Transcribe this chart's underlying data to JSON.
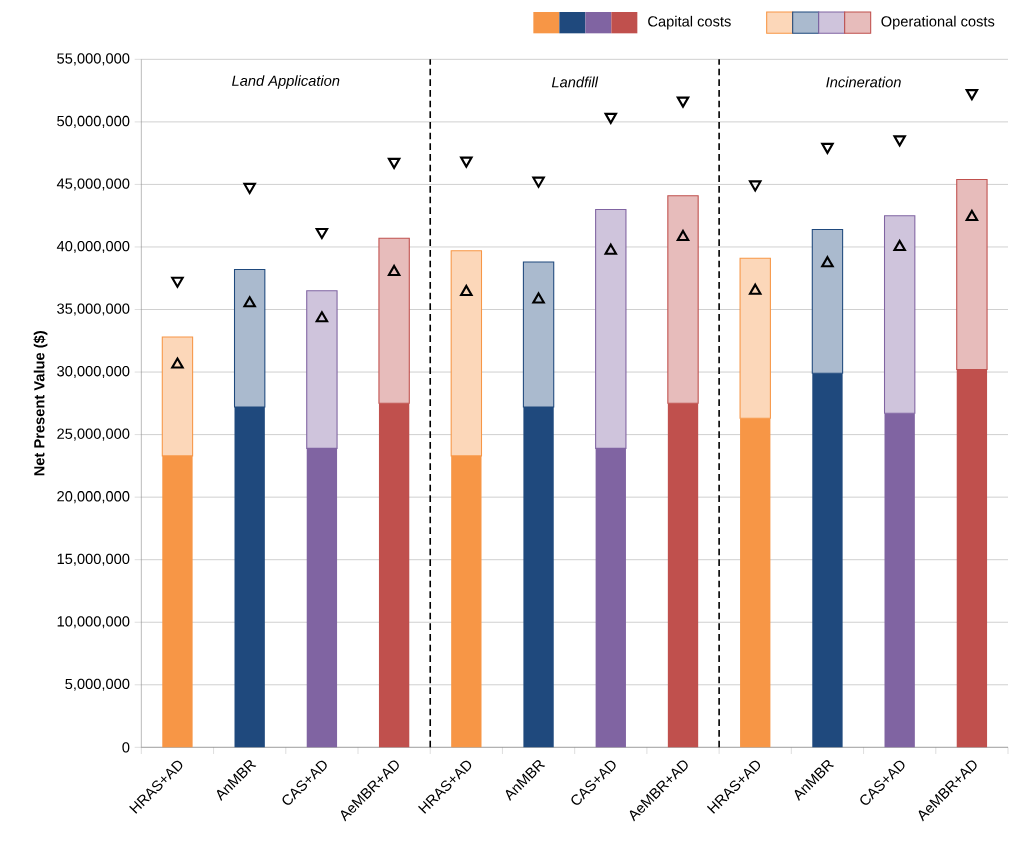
{
  "chart_data": {
    "type": "bar",
    "ylabel": "Net Present Value ($)",
    "stacked": true,
    "legend": "top",
    "grid": "y",
    "categories": [
      "HRAS+AD",
      "AnMBR",
      "CAS+AD",
      "AeMBR+AD",
      "HRAS+AD",
      "AnMBR",
      "CAS+AD",
      "AeMBR+AD",
      "HRAS+AD",
      "AnMBR",
      "CAS+AD",
      "AeMBR+AD"
    ],
    "series": [
      {
        "name": "Capital costs",
        "colors": [
          "#f79646",
          "#1f497d",
          "#8064a2",
          "#c0504d",
          "#f79646",
          "#1f497d",
          "#8064a2",
          "#c0504d",
          "#f79646",
          "#1f497d",
          "#8064a2",
          "#c0504d"
        ],
        "values": [
          23300000,
          27200000,
          23900000,
          27500000,
          23300000,
          27200000,
          23900000,
          27500000,
          26300000,
          29900000,
          26700000,
          30200000
        ]
      },
      {
        "name": "Operational costs",
        "colors": [
          "#f79646",
          "#1f497d",
          "#8064a2",
          "#c0504d",
          "#f79646",
          "#1f497d",
          "#8064a2",
          "#c0504d",
          "#f79646",
          "#1f497d",
          "#8064a2",
          "#c0504d"
        ],
        "values": [
          9500000,
          11000000,
          12600000,
          13200000,
          16400000,
          11600000,
          19100000,
          16600000,
          12800000,
          11500000,
          15800000,
          15200000
        ]
      },
      {
        "type": "scatter",
        "marker": "triangle",
        "color": "#000000",
        "values": [
          30600000,
          35500000,
          34300000,
          38000000,
          36400000,
          35800000,
          39700000,
          40800000,
          36500000,
          38700000,
          40000000,
          42400000
        ]
      },
      {
        "type": "scatter",
        "marker": "triangle",
        "color": "#000000",
        "values": [
          37300000,
          44800000,
          41200000,
          46800000,
          46900000,
          45300000,
          50400000,
          51700000,
          45000000,
          48000000,
          48600000,
          52300000
        ]
      }
    ],
    "ylim": [
      0,
      55000000
    ],
    "yticks": [
      {
        "value": 0,
        "label": "0"
      },
      {
        "value": 5000000,
        "label": "5,000,000"
      },
      {
        "value": 10000000,
        "label": "10,000,000"
      },
      {
        "value": 15000000,
        "label": "15,000,000"
      },
      {
        "value": 20000000,
        "label": "20,000,000"
      },
      {
        "value": 25000000,
        "label": "25,000,000"
      },
      {
        "value": 30000000,
        "label": "30,000,000"
      },
      {
        "value": 35000000,
        "label": "35,000,000"
      },
      {
        "value": 40000000,
        "label": "40,000,000"
      },
      {
        "value": 45000000,
        "label": "45,000,000"
      },
      {
        "value": 50000000,
        "label": "50,000,000"
      },
      {
        "value": 55000000,
        "label": "55,000,000"
      }
    ],
    "annotations": [
      "Land Application",
      "Landfill",
      "Incineration"
    ]
  }
}
